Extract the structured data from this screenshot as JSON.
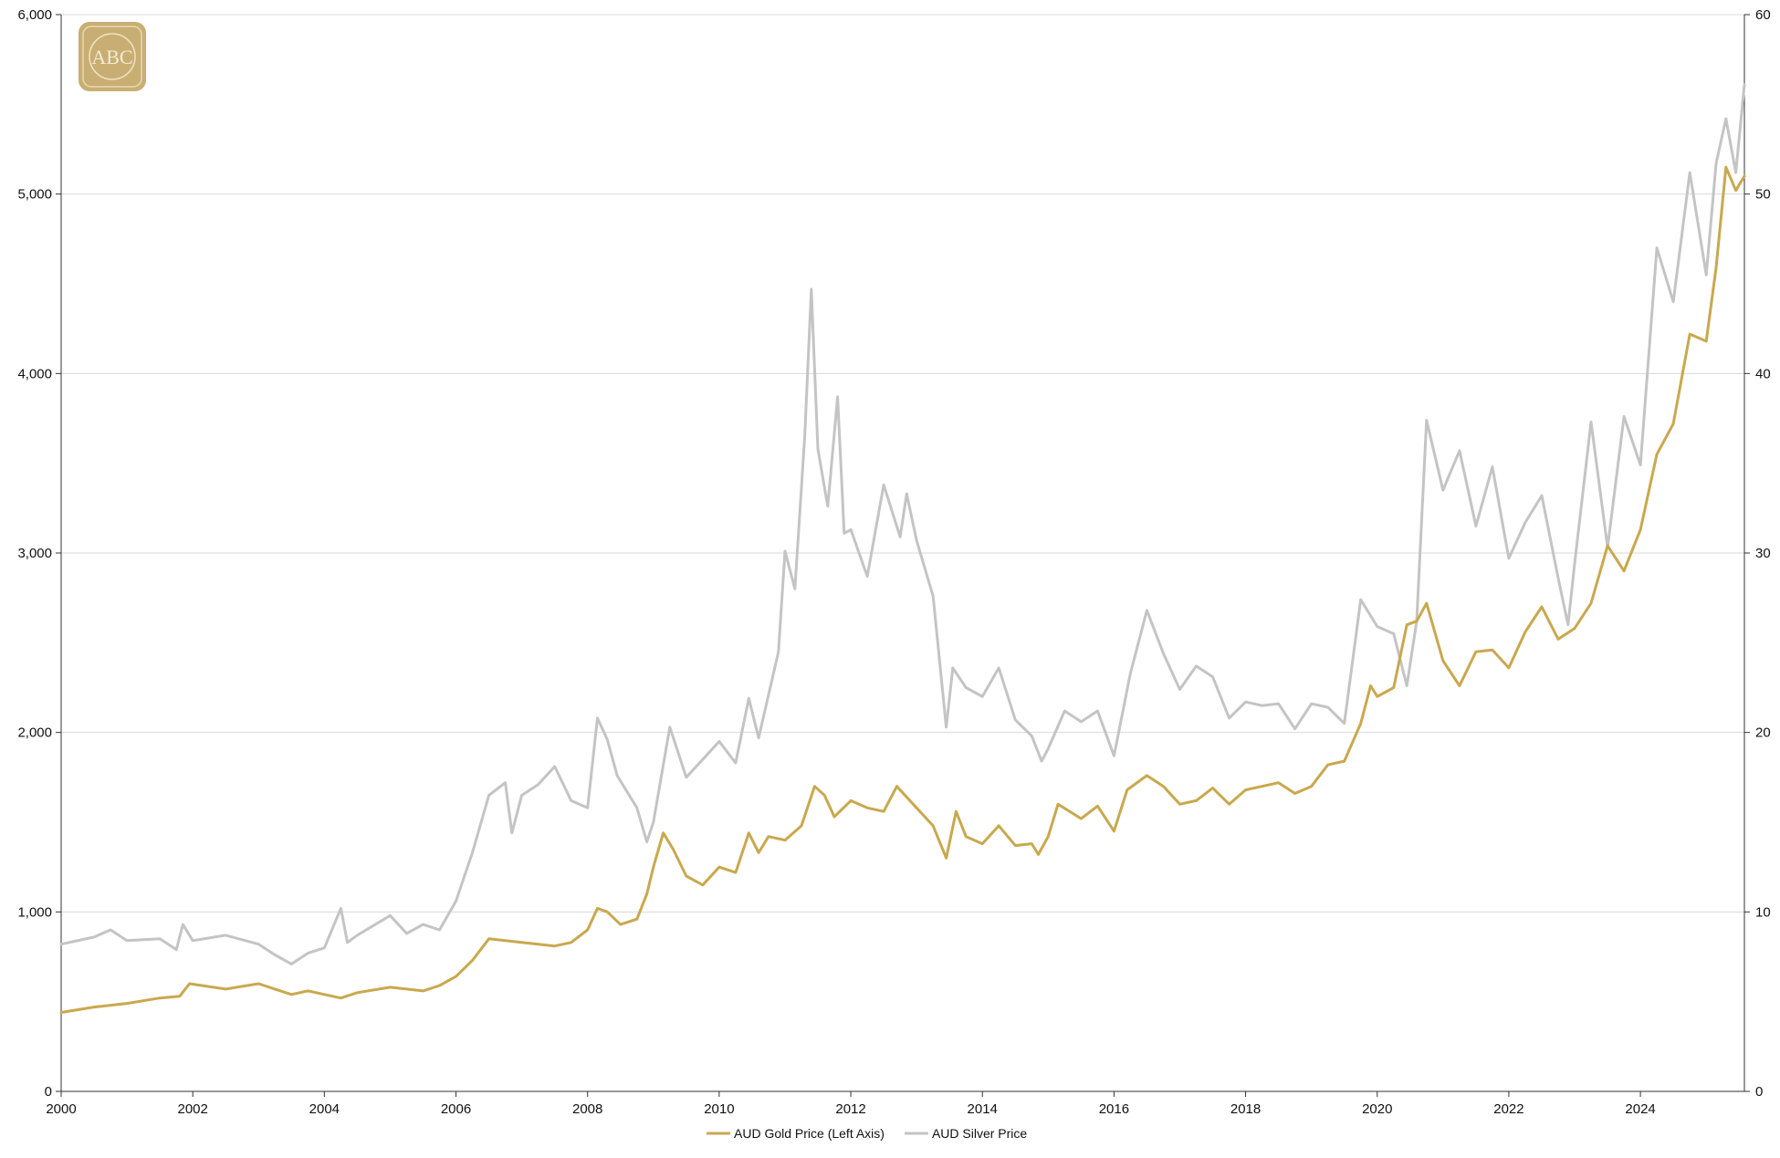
{
  "logo": {
    "text": "ABC"
  },
  "chart_data": {
    "type": "line",
    "title": "",
    "xlabel": "",
    "ylabel_left": "",
    "ylabel_right": "",
    "xlim": [
      2000.0,
      2025.58
    ],
    "ylim_left": [
      0,
      6000
    ],
    "ylim_right": [
      0,
      60
    ],
    "y_ticks_left": [
      "0",
      "1,000",
      "2,000",
      "3,000",
      "4,000",
      "5,000",
      "6,000"
    ],
    "y_ticks_right": [
      "0",
      "10",
      "20",
      "30",
      "40",
      "50",
      "60"
    ],
    "x_ticks": [
      "2000",
      "2002",
      "2004",
      "2006",
      "2008",
      "2010",
      "2012",
      "2014",
      "2016",
      "2018",
      "2020",
      "2022",
      "2024"
    ],
    "grid": "horizontal",
    "legend_position": "bottom-center",
    "series": [
      {
        "name": "AUD Gold Price (Left Axis)",
        "axis": "left",
        "color": "#c9a84e",
        "points": [
          [
            2000.0,
            440
          ],
          [
            2000.5,
            470
          ],
          [
            2001.0,
            490
          ],
          [
            2001.5,
            520
          ],
          [
            2001.8,
            530
          ],
          [
            2001.95,
            600
          ],
          [
            2002.5,
            570
          ],
          [
            2003.0,
            600
          ],
          [
            2003.25,
            570
          ],
          [
            2003.5,
            540
          ],
          [
            2003.75,
            560
          ],
          [
            2004.0,
            540
          ],
          [
            2004.25,
            520
          ],
          [
            2004.5,
            550
          ],
          [
            2005.0,
            580
          ],
          [
            2005.5,
            560
          ],
          [
            2005.75,
            590
          ],
          [
            2006.0,
            640
          ],
          [
            2006.25,
            730
          ],
          [
            2006.5,
            850
          ],
          [
            2007.0,
            830
          ],
          [
            2007.5,
            810
          ],
          [
            2007.75,
            830
          ],
          [
            2008.0,
            900
          ],
          [
            2008.15,
            1020
          ],
          [
            2008.3,
            1000
          ],
          [
            2008.5,
            930
          ],
          [
            2008.75,
            960
          ],
          [
            2008.9,
            1100
          ],
          [
            2009.0,
            1250
          ],
          [
            2009.15,
            1440
          ],
          [
            2009.3,
            1350
          ],
          [
            2009.5,
            1200
          ],
          [
            2009.75,
            1150
          ],
          [
            2010.0,
            1250
          ],
          [
            2010.25,
            1220
          ],
          [
            2010.45,
            1440
          ],
          [
            2010.6,
            1330
          ],
          [
            2010.75,
            1420
          ],
          [
            2011.0,
            1400
          ],
          [
            2011.25,
            1480
          ],
          [
            2011.45,
            1700
          ],
          [
            2011.6,
            1650
          ],
          [
            2011.75,
            1530
          ],
          [
            2012.0,
            1620
          ],
          [
            2012.25,
            1580
          ],
          [
            2012.5,
            1560
          ],
          [
            2012.7,
            1700
          ],
          [
            2013.0,
            1580
          ],
          [
            2013.25,
            1480
          ],
          [
            2013.45,
            1300
          ],
          [
            2013.6,
            1560
          ],
          [
            2013.75,
            1420
          ],
          [
            2014.0,
            1380
          ],
          [
            2014.25,
            1480
          ],
          [
            2014.5,
            1370
          ],
          [
            2014.75,
            1380
          ],
          [
            2014.85,
            1320
          ],
          [
            2015.0,
            1420
          ],
          [
            2015.15,
            1600
          ],
          [
            2015.5,
            1520
          ],
          [
            2015.75,
            1590
          ],
          [
            2016.0,
            1450
          ],
          [
            2016.2,
            1680
          ],
          [
            2016.5,
            1760
          ],
          [
            2016.75,
            1700
          ],
          [
            2017.0,
            1600
          ],
          [
            2017.25,
            1620
          ],
          [
            2017.5,
            1690
          ],
          [
            2017.75,
            1600
          ],
          [
            2018.0,
            1680
          ],
          [
            2018.25,
            1700
          ],
          [
            2018.5,
            1720
          ],
          [
            2018.75,
            1660
          ],
          [
            2019.0,
            1700
          ],
          [
            2019.25,
            1820
          ],
          [
            2019.5,
            1840
          ],
          [
            2019.75,
            2050
          ],
          [
            2019.9,
            2260
          ],
          [
            2020.0,
            2200
          ],
          [
            2020.25,
            2250
          ],
          [
            2020.45,
            2600
          ],
          [
            2020.6,
            2620
          ],
          [
            2020.75,
            2720
          ],
          [
            2021.0,
            2400
          ],
          [
            2021.25,
            2260
          ],
          [
            2021.5,
            2450
          ],
          [
            2021.75,
            2460
          ],
          [
            2022.0,
            2360
          ],
          [
            2022.25,
            2560
          ],
          [
            2022.5,
            2700
          ],
          [
            2022.75,
            2520
          ],
          [
            2023.0,
            2580
          ],
          [
            2023.25,
            2720
          ],
          [
            2023.5,
            3040
          ],
          [
            2023.75,
            2900
          ],
          [
            2024.0,
            3130
          ],
          [
            2024.25,
            3550
          ],
          [
            2024.5,
            3720
          ],
          [
            2024.75,
            4220
          ],
          [
            2025.0,
            4180
          ],
          [
            2025.15,
            4590
          ],
          [
            2025.3,
            5150
          ],
          [
            2025.45,
            5020
          ],
          [
            2025.58,
            5100
          ]
        ]
      },
      {
        "name": "AUD Silver Price",
        "axis": "right",
        "color": "#c4c4c4",
        "points": [
          [
            2000.0,
            8.2
          ],
          [
            2000.5,
            8.6
          ],
          [
            2000.75,
            9.0
          ],
          [
            2001.0,
            8.4
          ],
          [
            2001.5,
            8.5
          ],
          [
            2001.75,
            7.9
          ],
          [
            2001.85,
            9.3
          ],
          [
            2002.0,
            8.4
          ],
          [
            2002.5,
            8.7
          ],
          [
            2003.0,
            8.2
          ],
          [
            2003.25,
            7.6
          ],
          [
            2003.5,
            7.1
          ],
          [
            2003.75,
            7.7
          ],
          [
            2004.0,
            8.0
          ],
          [
            2004.25,
            10.2
          ],
          [
            2004.35,
            8.3
          ],
          [
            2004.5,
            8.7
          ],
          [
            2005.0,
            9.8
          ],
          [
            2005.25,
            8.8
          ],
          [
            2005.5,
            9.3
          ],
          [
            2005.75,
            9.0
          ],
          [
            2006.0,
            10.6
          ],
          [
            2006.25,
            13.3
          ],
          [
            2006.5,
            16.5
          ],
          [
            2006.75,
            17.2
          ],
          [
            2006.85,
            14.4
          ],
          [
            2007.0,
            16.5
          ],
          [
            2007.25,
            17.1
          ],
          [
            2007.5,
            18.1
          ],
          [
            2007.75,
            16.2
          ],
          [
            2008.0,
            15.8
          ],
          [
            2008.15,
            20.8
          ],
          [
            2008.3,
            19.6
          ],
          [
            2008.45,
            17.6
          ],
          [
            2008.75,
            15.8
          ],
          [
            2008.9,
            13.9
          ],
          [
            2009.0,
            15.0
          ],
          [
            2009.25,
            20.3
          ],
          [
            2009.5,
            17.5
          ],
          [
            2009.75,
            18.5
          ],
          [
            2010.0,
            19.5
          ],
          [
            2010.25,
            18.3
          ],
          [
            2010.45,
            21.9
          ],
          [
            2010.6,
            19.7
          ],
          [
            2010.9,
            24.5
          ],
          [
            2011.0,
            30.1
          ],
          [
            2011.15,
            28.0
          ],
          [
            2011.3,
            36.5
          ],
          [
            2011.4,
            44.7
          ],
          [
            2011.5,
            35.8
          ],
          [
            2011.65,
            32.6
          ],
          [
            2011.8,
            38.7
          ],
          [
            2011.9,
            31.1
          ],
          [
            2012.0,
            31.3
          ],
          [
            2012.25,
            28.7
          ],
          [
            2012.5,
            33.8
          ],
          [
            2012.75,
            30.9
          ],
          [
            2012.85,
            33.3
          ],
          [
            2013.0,
            30.7
          ],
          [
            2013.25,
            27.6
          ],
          [
            2013.45,
            20.3
          ],
          [
            2013.55,
            23.6
          ],
          [
            2013.75,
            22.5
          ],
          [
            2014.0,
            22.0
          ],
          [
            2014.25,
            23.6
          ],
          [
            2014.5,
            20.7
          ],
          [
            2014.75,
            19.8
          ],
          [
            2014.9,
            18.4
          ],
          [
            2015.0,
            19.1
          ],
          [
            2015.25,
            21.2
          ],
          [
            2015.5,
            20.6
          ],
          [
            2015.75,
            21.2
          ],
          [
            2016.0,
            18.7
          ],
          [
            2016.25,
            23.3
          ],
          [
            2016.5,
            26.8
          ],
          [
            2016.75,
            24.4
          ],
          [
            2017.0,
            22.4
          ],
          [
            2017.25,
            23.7
          ],
          [
            2017.5,
            23.1
          ],
          [
            2017.75,
            20.8
          ],
          [
            2018.0,
            21.7
          ],
          [
            2018.25,
            21.5
          ],
          [
            2018.5,
            21.6
          ],
          [
            2018.75,
            20.2
          ],
          [
            2019.0,
            21.6
          ],
          [
            2019.25,
            21.4
          ],
          [
            2019.5,
            20.5
          ],
          [
            2019.75,
            27.4
          ],
          [
            2020.0,
            25.9
          ],
          [
            2020.25,
            25.5
          ],
          [
            2020.45,
            22.6
          ],
          [
            2020.6,
            26.2
          ],
          [
            2020.75,
            37.4
          ],
          [
            2021.0,
            33.5
          ],
          [
            2021.25,
            35.7
          ],
          [
            2021.5,
            31.5
          ],
          [
            2021.75,
            34.8
          ],
          [
            2022.0,
            29.7
          ],
          [
            2022.25,
            31.7
          ],
          [
            2022.5,
            33.2
          ],
          [
            2022.75,
            28.6
          ],
          [
            2022.9,
            26.0
          ],
          [
            2023.0,
            29.4
          ],
          [
            2023.25,
            37.3
          ],
          [
            2023.5,
            30.3
          ],
          [
            2023.75,
            37.6
          ],
          [
            2024.0,
            34.9
          ],
          [
            2024.25,
            47.0
          ],
          [
            2024.5,
            44.0
          ],
          [
            2024.75,
            51.2
          ],
          [
            2025.0,
            45.5
          ],
          [
            2025.15,
            51.7
          ],
          [
            2025.3,
            54.2
          ],
          [
            2025.45,
            51.2
          ],
          [
            2025.58,
            56.1
          ]
        ]
      }
    ]
  }
}
